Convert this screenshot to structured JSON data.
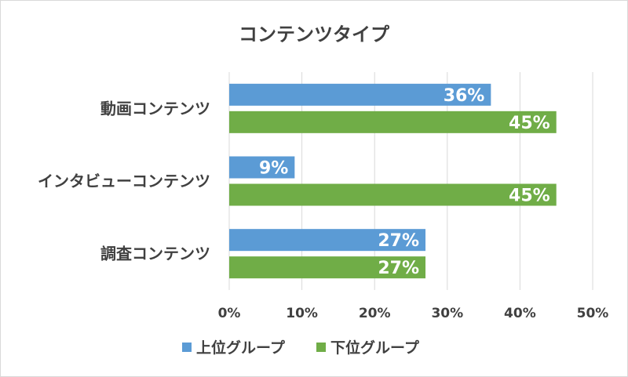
{
  "chart_data": {
    "type": "bar",
    "orientation": "horizontal",
    "title": "コンテンツタイプ",
    "categories": [
      "動画コンテンツ",
      "インタビューコンテンツ",
      "調査コンテンツ"
    ],
    "series": [
      {
        "name": "上位グループ",
        "color": "#5b9bd5",
        "values": [
          36,
          9,
          27
        ]
      },
      {
        "name": "下位グループ",
        "color": "#70ad47",
        "values": [
          45,
          45,
          27
        ]
      }
    ],
    "data_labels": [
      [
        "36%",
        "9%",
        "27%"
      ],
      [
        "45%",
        "45%",
        "27%"
      ]
    ],
    "xlim": [
      0,
      50
    ],
    "xticks": [
      "0%",
      "10%",
      "20%",
      "30%",
      "40%",
      "50%"
    ],
    "grid": true,
    "legend_position": "bottom"
  }
}
